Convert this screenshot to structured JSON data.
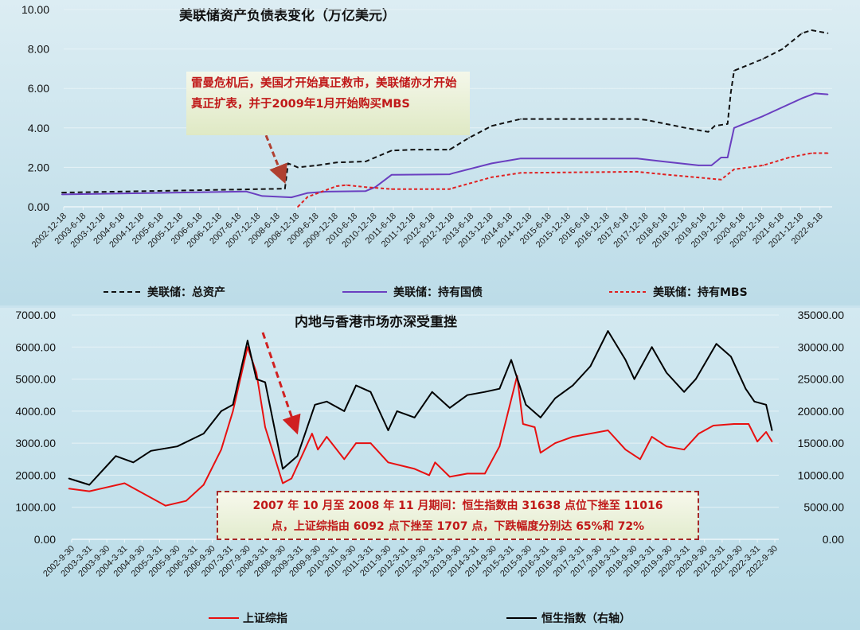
{
  "chart_data": [
    {
      "type": "line",
      "title": "美联储资产负债表变化（万亿美元）",
      "ylim": [
        0,
        10
      ],
      "yticks": [
        "0.00",
        "2.00",
        "4.00",
        "6.00",
        "8.00",
        "10.00"
      ],
      "xticks": [
        "2002-12-18",
        "2003-6-18",
        "2003-12-18",
        "2004-6-18",
        "2004-12-18",
        "2005-6-18",
        "2005-12-18",
        "2006-6-18",
        "2006-12-18",
        "2007-6-18",
        "2007-12-18",
        "2008-6-18",
        "2008-12-18",
        "2009-6-18",
        "2009-12-18",
        "2010-6-18",
        "2010-12-18",
        "2011-6-18",
        "2011-12-18",
        "2012-6-18",
        "2012-12-18",
        "2013-6-18",
        "2013-12-18",
        "2014-6-18",
        "2014-12-18",
        "2015-6-18",
        "2015-12-18",
        "2016-6-18",
        "2016-12-18",
        "2017-6-18",
        "2017-12-18",
        "2018-6-18",
        "2018-12-18",
        "2019-6-18",
        "2019-12-18",
        "2020-6-18",
        "2020-12-18",
        "2021-6-18",
        "2021-12-18",
        "2022-6-18"
      ],
      "legend_position": "bottom",
      "series": [
        {
          "name": "美联储：总资产",
          "color": "#111111",
          "style": "dashed",
          "points": [
            [
              "2002-12",
              0.72
            ],
            [
              "2007-07",
              0.88
            ],
            [
              "2008-09",
              0.92
            ],
            [
              "2008-10",
              2.2
            ],
            [
              "2009-01",
              2.0
            ],
            [
              "2009-07",
              2.1
            ],
            [
              "2010-01",
              2.25
            ],
            [
              "2010-10",
              2.3
            ],
            [
              "2011-06",
              2.85
            ],
            [
              "2012-01",
              2.9
            ],
            [
              "2012-12",
              2.9
            ],
            [
              "2013-06",
              3.5
            ],
            [
              "2014-01",
              4.1
            ],
            [
              "2014-10",
              4.45
            ],
            [
              "2017-10",
              4.45
            ],
            [
              "2018-01",
              4.4
            ],
            [
              "2019-01",
              4.0
            ],
            [
              "2019-08",
              3.8
            ],
            [
              "2019-10",
              4.1
            ],
            [
              "2020-02",
              4.2
            ],
            [
              "2020-03",
              5.8
            ],
            [
              "2020-04",
              6.9
            ],
            [
              "2020-07",
              7.1
            ],
            [
              "2021-01",
              7.5
            ],
            [
              "2021-07",
              8.0
            ],
            [
              "2022-01",
              8.8
            ],
            [
              "2022-04",
              8.95
            ],
            [
              "2022-09",
              8.8
            ]
          ]
        },
        {
          "name": "美联储：持有国债",
          "color": "#6a3fc0",
          "style": "solid",
          "points": [
            [
              "2002-12",
              0.63
            ],
            [
              "2007-09",
              0.78
            ],
            [
              "2008-02",
              0.55
            ],
            [
              "2008-11",
              0.48
            ],
            [
              "2009-04",
              0.7
            ],
            [
              "2009-10",
              0.77
            ],
            [
              "2010-10",
              0.8
            ],
            [
              "2011-01",
              1.0
            ],
            [
              "2011-06",
              1.62
            ],
            [
              "2012-12",
              1.65
            ],
            [
              "2013-01",
              1.7
            ],
            [
              "2014-01",
              2.2
            ],
            [
              "2014-10",
              2.45
            ],
            [
              "2017-10",
              2.45
            ],
            [
              "2018-06",
              2.3
            ],
            [
              "2019-05",
              2.1
            ],
            [
              "2019-09",
              2.1
            ],
            [
              "2019-12",
              2.5
            ],
            [
              "2020-02",
              2.5
            ],
            [
              "2020-04",
              4.0
            ],
            [
              "2021-01",
              4.6
            ],
            [
              "2022-01",
              5.5
            ],
            [
              "2022-05",
              5.75
            ],
            [
              "2022-09",
              5.7
            ]
          ]
        },
        {
          "name": "美联储：持有MBS",
          "color": "#e02020",
          "style": "dashed",
          "points": [
            [
              "2009-01",
              0
            ],
            [
              "2009-04",
              0.5
            ],
            [
              "2010-01",
              1.05
            ],
            [
              "2010-04",
              1.1
            ],
            [
              "2010-10",
              1.0
            ],
            [
              "2011-06",
              0.9
            ],
            [
              "2012-12",
              0.9
            ],
            [
              "2013-01",
              0.95
            ],
            [
              "2014-01",
              1.5
            ],
            [
              "2014-10",
              1.72
            ],
            [
              "2017-10",
              1.78
            ],
            [
              "2018-06",
              1.65
            ],
            [
              "2019-12",
              1.38
            ],
            [
              "2020-04",
              1.9
            ],
            [
              "2021-01",
              2.1
            ],
            [
              "2021-09",
              2.5
            ],
            [
              "2022-04",
              2.72
            ],
            [
              "2022-09",
              2.72
            ]
          ]
        }
      ],
      "annotation": "雷曼危机后，美国才开始真正救市，美联储亦才开始真正扩表，并于2009年1月开始购买MBS"
    },
    {
      "type": "line",
      "title": "内地与香港市场亦深受重挫",
      "ylim": [
        0,
        7000
      ],
      "y2lim": [
        0,
        35000
      ],
      "yticks": [
        "0.00",
        "1000.00",
        "2000.00",
        "3000.00",
        "4000.00",
        "5000.00",
        "6000.00",
        "7000.00"
      ],
      "y2ticks": [
        "0.00",
        "5000.00",
        "10000.00",
        "15000.00",
        "20000.00",
        "25000.00",
        "30000.00",
        "35000.00"
      ],
      "xticks": [
        "2002-9-30",
        "2003-3-31",
        "2003-9-30",
        "2004-3-31",
        "2004-9-30",
        "2005-3-31",
        "2005-9-30",
        "2006-3-31",
        "2006-9-30",
        "2007-3-31",
        "2007-9-30",
        "2008-3-31",
        "2008-9-30",
        "2009-3-31",
        "2009-9-30",
        "2010-3-31",
        "2010-9-30",
        "2011-3-31",
        "2011-9-30",
        "2012-3-31",
        "2012-9-30",
        "2013-3-31",
        "2013-9-30",
        "2014-3-31",
        "2014-9-30",
        "2015-3-31",
        "2015-9-30",
        "2016-3-31",
        "2016-9-30",
        "2017-3-31",
        "2017-9-30",
        "2018-3-31",
        "2018-9-30",
        "2019-3-31",
        "2019-9-30",
        "2020-3-31",
        "2020-9-30",
        "2021-3-31",
        "2021-9-30",
        "2022-3-31",
        "2022-9-30"
      ],
      "legend_position": "bottom",
      "series": [
        {
          "name": "上证综指",
          "color": "#e81010",
          "axis": "left",
          "points": [
            [
              "2002-09",
              1580
            ],
            [
              "2003-04",
              1500
            ],
            [
              "2004-04",
              1750
            ],
            [
              "2005-06",
              1050
            ],
            [
              "2006-01",
              1200
            ],
            [
              "2006-07",
              1700
            ],
            [
              "2007-01",
              2800
            ],
            [
              "2007-05",
              4000
            ],
            [
              "2007-10",
              6000
            ],
            [
              "2008-01",
              5200
            ],
            [
              "2008-04",
              3500
            ],
            [
              "2008-10",
              1750
            ],
            [
              "2009-01",
              1900
            ],
            [
              "2009-08",
              3300
            ],
            [
              "2009-10",
              2800
            ],
            [
              "2010-01",
              3200
            ],
            [
              "2010-07",
              2500
            ],
            [
              "2010-11",
              3000
            ],
            [
              "2011-04",
              3000
            ],
            [
              "2011-10",
              2400
            ],
            [
              "2012-07",
              2200
            ],
            [
              "2012-12",
              2000
            ],
            [
              "2013-02",
              2400
            ],
            [
              "2013-07",
              1950
            ],
            [
              "2014-01",
              2050
            ],
            [
              "2014-07",
              2050
            ],
            [
              "2014-12",
              2900
            ],
            [
              "2015-06",
              5100
            ],
            [
              "2015-08",
              3600
            ],
            [
              "2015-12",
              3500
            ],
            [
              "2016-02",
              2700
            ],
            [
              "2016-07",
              3000
            ],
            [
              "2017-01",
              3200
            ],
            [
              "2018-01",
              3400
            ],
            [
              "2018-07",
              2800
            ],
            [
              "2018-12",
              2500
            ],
            [
              "2019-04",
              3200
            ],
            [
              "2019-09",
              2900
            ],
            [
              "2020-03",
              2800
            ],
            [
              "2020-08",
              3300
            ],
            [
              "2021-01",
              3550
            ],
            [
              "2021-08",
              3600
            ],
            [
              "2022-01",
              3600
            ],
            [
              "2022-04",
              3050
            ],
            [
              "2022-07",
              3350
            ],
            [
              "2022-09",
              3050
            ]
          ]
        },
        {
          "name": "恒生指数（右轴）",
          "color": "#000000",
          "axis": "right",
          "points": [
            [
              "2002-09",
              9500
            ],
            [
              "2003-04",
              8500
            ],
            [
              "2004-01",
              13000
            ],
            [
              "2004-07",
              12000
            ],
            [
              "2005-01",
              13800
            ],
            [
              "2005-10",
              14500
            ],
            [
              "2006-07",
              16500
            ],
            [
              "2007-01",
              20000
            ],
            [
              "2007-05",
              21000
            ],
            [
              "2007-10",
              31000
            ],
            [
              "2008-01",
              25000
            ],
            [
              "2008-04",
              24500
            ],
            [
              "2008-10",
              11000
            ],
            [
              "2009-03",
              13000
            ],
            [
              "2009-09",
              21000
            ],
            [
              "2010-01",
              21500
            ],
            [
              "2010-07",
              20000
            ],
            [
              "2010-11",
              24000
            ],
            [
              "2011-04",
              23000
            ],
            [
              "2011-10",
              17000
            ],
            [
              "2012-01",
              20000
            ],
            [
              "2012-07",
              19000
            ],
            [
              "2013-01",
              23000
            ],
            [
              "2013-07",
              20500
            ],
            [
              "2014-01",
              22500
            ],
            [
              "2014-07",
              23000
            ],
            [
              "2014-12",
              23500
            ],
            [
              "2015-04",
              28000
            ],
            [
              "2015-09",
              21000
            ],
            [
              "2016-02",
              19000
            ],
            [
              "2016-07",
              22000
            ],
            [
              "2017-01",
              24000
            ],
            [
              "2017-07",
              27000
            ],
            [
              "2018-01",
              32500
            ],
            [
              "2018-07",
              28000
            ],
            [
              "2018-10",
              25000
            ],
            [
              "2019-04",
              30000
            ],
            [
              "2019-09",
              26000
            ],
            [
              "2020-03",
              23000
            ],
            [
              "2020-07",
              25000
            ],
            [
              "2021-02",
              30500
            ],
            [
              "2021-07",
              28500
            ],
            [
              "2021-12",
              23500
            ],
            [
              "2022-03",
              21500
            ],
            [
              "2022-07",
              21000
            ],
            [
              "2022-09",
              17000
            ]
          ]
        }
      ],
      "annotation": {
        "line1": "2007 年 10 月至 2008 年 11 月期间：恒生指数由 31638 点位下挫至 11016",
        "line2": "点，上证综指由 6092 点下挫至 1707 点，下跌幅度分别达 65%和 72%"
      }
    }
  ],
  "colors": {
    "background": "#c9e3ee",
    "annotation_text": "#c01818",
    "arrow": "#b04030"
  }
}
